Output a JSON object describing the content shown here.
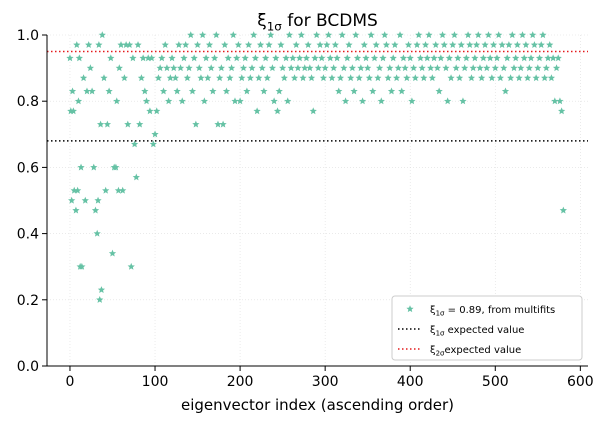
{
  "chart_data": {
    "type": "scatter",
    "title": {
      "symbol": "ξ",
      "sub": "1σ",
      "text": " for BCDMS"
    },
    "x_label": "eigenvector index (ascending order)",
    "xlim": [
      -27,
      609
    ],
    "ylim": [
      0,
      1
    ],
    "xticks": [
      0,
      100,
      200,
      300,
      400,
      500,
      600
    ],
    "yticks": [
      {
        "value": 0,
        "label": "0.0"
      },
      0.2,
      0.4,
      0.6,
      0.8,
      {
        "value": 1,
        "label": "1.0"
      }
    ],
    "grid": true,
    "legend": "lower right",
    "series": [
      {
        "name": {
          "symbol": "ξ",
          "sub": "1σ",
          "text": " = 0.89, from multifits"
        },
        "color": "#66c2a5",
        "x": [
          0,
          1,
          2,
          3,
          4,
          5,
          7,
          8,
          9,
          10,
          11,
          12,
          13,
          14,
          16,
          18,
          20,
          22,
          24,
          26,
          28,
          30,
          32,
          33,
          34,
          35,
          36,
          37,
          38,
          40,
          42,
          44,
          46,
          48,
          50,
          52,
          54,
          55,
          57,
          58,
          60,
          62,
          64,
          66,
          68,
          70,
          72,
          74,
          76,
          78,
          80,
          82,
          84,
          86,
          88,
          90,
          92,
          94,
          96,
          98,
          100,
          102,
          104,
          106,
          108,
          110,
          112,
          114,
          116,
          118,
          120,
          122,
          124,
          126,
          128,
          130,
          132,
          134,
          136,
          138,
          140,
          142,
          144,
          146,
          148,
          150,
          152,
          154,
          156,
          158,
          160,
          162,
          164,
          166,
          168,
          170,
          172,
          174,
          176,
          178,
          180,
          182,
          184,
          186,
          188,
          190,
          192,
          194,
          196,
          198,
          200,
          202,
          204,
          206,
          208,
          210,
          212,
          214,
          216,
          218,
          220,
          222,
          224,
          226,
          228,
          230,
          232,
          234,
          236,
          238,
          240,
          242,
          244,
          246,
          248,
          250,
          252,
          254,
          256,
          258,
          260,
          262,
          264,
          266,
          268,
          270,
          272,
          274,
          276,
          278,
          280,
          282,
          284,
          286,
          288,
          290,
          292,
          294,
          296,
          298,
          300,
          302,
          304,
          306,
          308,
          310,
          312,
          314,
          316,
          318,
          320,
          322,
          324,
          326,
          328,
          330,
          332,
          334,
          336,
          338,
          340,
          342,
          344,
          346,
          348,
          350,
          352,
          354,
          356,
          358,
          360,
          362,
          364,
          366,
          368,
          370,
          372,
          374,
          376,
          378,
          380,
          382,
          384,
          386,
          388,
          390,
          392,
          394,
          396,
          398,
          400,
          402,
          404,
          406,
          408,
          410,
          412,
          414,
          416,
          418,
          420,
          422,
          424,
          426,
          428,
          430,
          432,
          434,
          436,
          438,
          440,
          442,
          444,
          446,
          448,
          450,
          452,
          454,
          456,
          458,
          460,
          462,
          464,
          466,
          468,
          470,
          472,
          474,
          476,
          478,
          480,
          482,
          484,
          486,
          488,
          490,
          492,
          494,
          496,
          498,
          500,
          502,
          504,
          506,
          508,
          510,
          512,
          514,
          516,
          518,
          520,
          522,
          524,
          526,
          528,
          530,
          532,
          534,
          536,
          538,
          540,
          542,
          544,
          546,
          548,
          550,
          552,
          554,
          556,
          558,
          560,
          562,
          564,
          566,
          568,
          570,
          572,
          574,
          576,
          578,
          580
        ],
        "values": [
          0.93,
          0.77,
          0.5,
          0.83,
          0.77,
          0.53,
          0.47,
          0.97,
          0.53,
          0.8,
          0.93,
          0.3,
          0.6,
          0.3,
          0.87,
          0.5,
          0.83,
          0.97,
          0.9,
          0.83,
          0.6,
          0.47,
          0.4,
          0.5,
          0.97,
          0.2,
          0.73,
          0.23,
          1.0,
          0.87,
          0.53,
          0.73,
          0.83,
          0.93,
          0.34,
          0.6,
          0.6,
          0.8,
          0.53,
          0.9,
          0.97,
          0.53,
          0.87,
          0.97,
          0.73,
          0.97,
          0.3,
          0.93,
          0.67,
          0.57,
          0.97,
          0.73,
          0.87,
          0.93,
          0.83,
          0.8,
          0.93,
          0.77,
          0.93,
          0.67,
          0.7,
          0.77,
          0.87,
          0.9,
          0.93,
          0.83,
          0.97,
          0.9,
          0.8,
          0.87,
          0.93,
          0.9,
          0.87,
          0.83,
          0.97,
          0.9,
          0.8,
          0.93,
          0.97,
          0.87,
          0.9,
          1.0,
          0.83,
          0.93,
          0.73,
          0.97,
          0.9,
          0.87,
          1.0,
          0.8,
          0.93,
          0.87,
          0.97,
          0.9,
          0.83,
          0.93,
          1.0,
          0.73,
          0.87,
          0.9,
          0.73,
          0.97,
          0.83,
          0.93,
          0.87,
          0.9,
          1.0,
          0.8,
          0.93,
          0.97,
          0.8,
          0.87,
          0.9,
          0.93,
          0.83,
          0.97,
          0.87,
          0.9,
          1.0,
          0.93,
          0.77,
          0.87,
          0.97,
          0.9,
          0.83,
          0.93,
          0.87,
          0.97,
          1.0,
          0.9,
          0.8,
          0.93,
          0.77,
          0.83,
          0.97,
          0.9,
          0.87,
          0.93,
          0.8,
          1.0,
          0.9,
          0.93,
          0.87,
          0.97,
          0.9,
          0.93,
          1.0,
          0.87,
          0.9,
          0.93,
          0.97,
          0.9,
          0.87,
          0.77,
          0.93,
          1.0,
          0.9,
          0.97,
          0.93,
          0.87,
          0.9,
          0.97,
          1.0,
          0.93,
          0.87,
          0.9,
          0.97,
          0.93,
          0.83,
          0.87,
          1.0,
          0.9,
          0.8,
          0.93,
          0.97,
          0.87,
          0.9,
          0.83,
          1.0,
          0.93,
          0.87,
          0.9,
          0.8,
          0.97,
          0.93,
          0.9,
          0.87,
          1.0,
          0.83,
          0.93,
          0.97,
          0.87,
          0.9,
          0.8,
          0.93,
          1.0,
          0.97,
          0.87,
          0.9,
          0.83,
          0.93,
          0.97,
          0.87,
          0.9,
          1.0,
          0.83,
          0.93,
          0.9,
          0.87,
          0.97,
          0.93,
          0.8,
          0.9,
          0.87,
          0.97,
          1.0,
          0.93,
          0.9,
          0.87,
          0.97,
          0.93,
          1.0,
          0.9,
          0.87,
          0.93,
          0.97,
          0.9,
          0.83,
          0.93,
          1.0,
          0.97,
          0.9,
          0.8,
          0.93,
          0.87,
          0.97,
          1.0,
          0.9,
          0.93,
          0.87,
          0.97,
          0.8,
          0.9,
          0.93,
          1.0,
          0.97,
          0.87,
          0.9,
          0.93,
          0.97,
          1.0,
          0.9,
          0.87,
          0.93,
          0.97,
          0.9,
          1.0,
          0.93,
          0.87,
          0.97,
          0.9,
          0.93,
          1.0,
          0.87,
          0.97,
          0.9,
          0.83,
          0.93,
          0.97,
          0.87,
          1.0,
          0.9,
          0.93,
          0.97,
          0.87,
          0.9,
          1.0,
          0.93,
          0.97,
          0.87,
          0.9,
          0.93,
          1.0,
          0.97,
          0.87,
          0.9,
          0.93,
          0.97,
          1.0,
          0.87,
          0.9,
          0.93,
          0.97,
          0.87,
          0.93,
          0.8,
          0.9,
          0.93,
          0.8,
          0.77,
          0.47
        ]
      }
    ],
    "reference_lines": [
      {
        "value": 0.68,
        "color": "#000000",
        "label": {
          "symbol": "ξ",
          "sub": "1σ",
          "text": " expected value"
        }
      },
      {
        "value": 0.95,
        "color": "#e41a1c",
        "label": {
          "symbol": "ξ",
          "sub": "2σ",
          "text": "expected value"
        }
      }
    ]
  }
}
